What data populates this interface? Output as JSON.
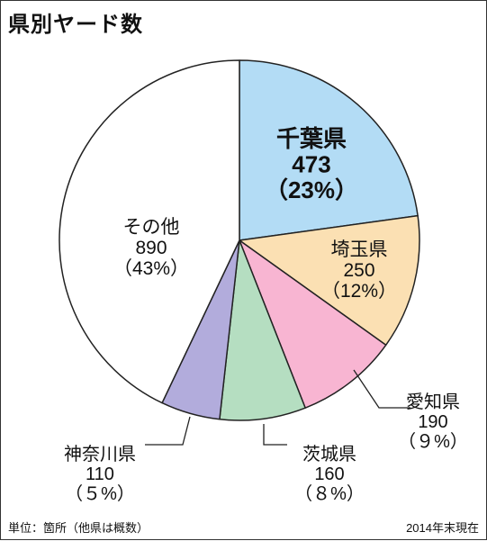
{
  "title": "県別ヤード数",
  "footer": {
    "unit_note": "単位：箇所（他県は概数）",
    "as_of": "2014年末現在"
  },
  "chart_data": {
    "type": "pie",
    "title": "県別ヤード数",
    "unit": "箇所",
    "slices": [
      {
        "label": "千葉県",
        "value": 473,
        "value_text": "473",
        "percent_text": "（23%）",
        "color": "#b3dcf5"
      },
      {
        "label": "埼玉県",
        "value": 250,
        "value_text": "250",
        "percent_text": "（12%）",
        "color": "#fbe0b3"
      },
      {
        "label": "愛知県",
        "value": 190,
        "value_text": "190",
        "percent_text": "（９%）",
        "color": "#f8b5d2"
      },
      {
        "label": "茨城県",
        "value": 160,
        "value_text": "160",
        "percent_text": "（８%）",
        "color": "#b5dec1"
      },
      {
        "label": "神奈川県",
        "value": 110,
        "value_text": "110",
        "percent_text": "（５%）",
        "color": "#b2acdc"
      },
      {
        "label": "その他",
        "value": 890,
        "value_text": "890",
        "percent_text": "（43%）",
        "color": "#ffffff"
      }
    ],
    "start": "12 o'clock",
    "direction": "clockwise",
    "labels": [
      "inside",
      "inside",
      "outside",
      "outside",
      "outside",
      "inside"
    ]
  }
}
